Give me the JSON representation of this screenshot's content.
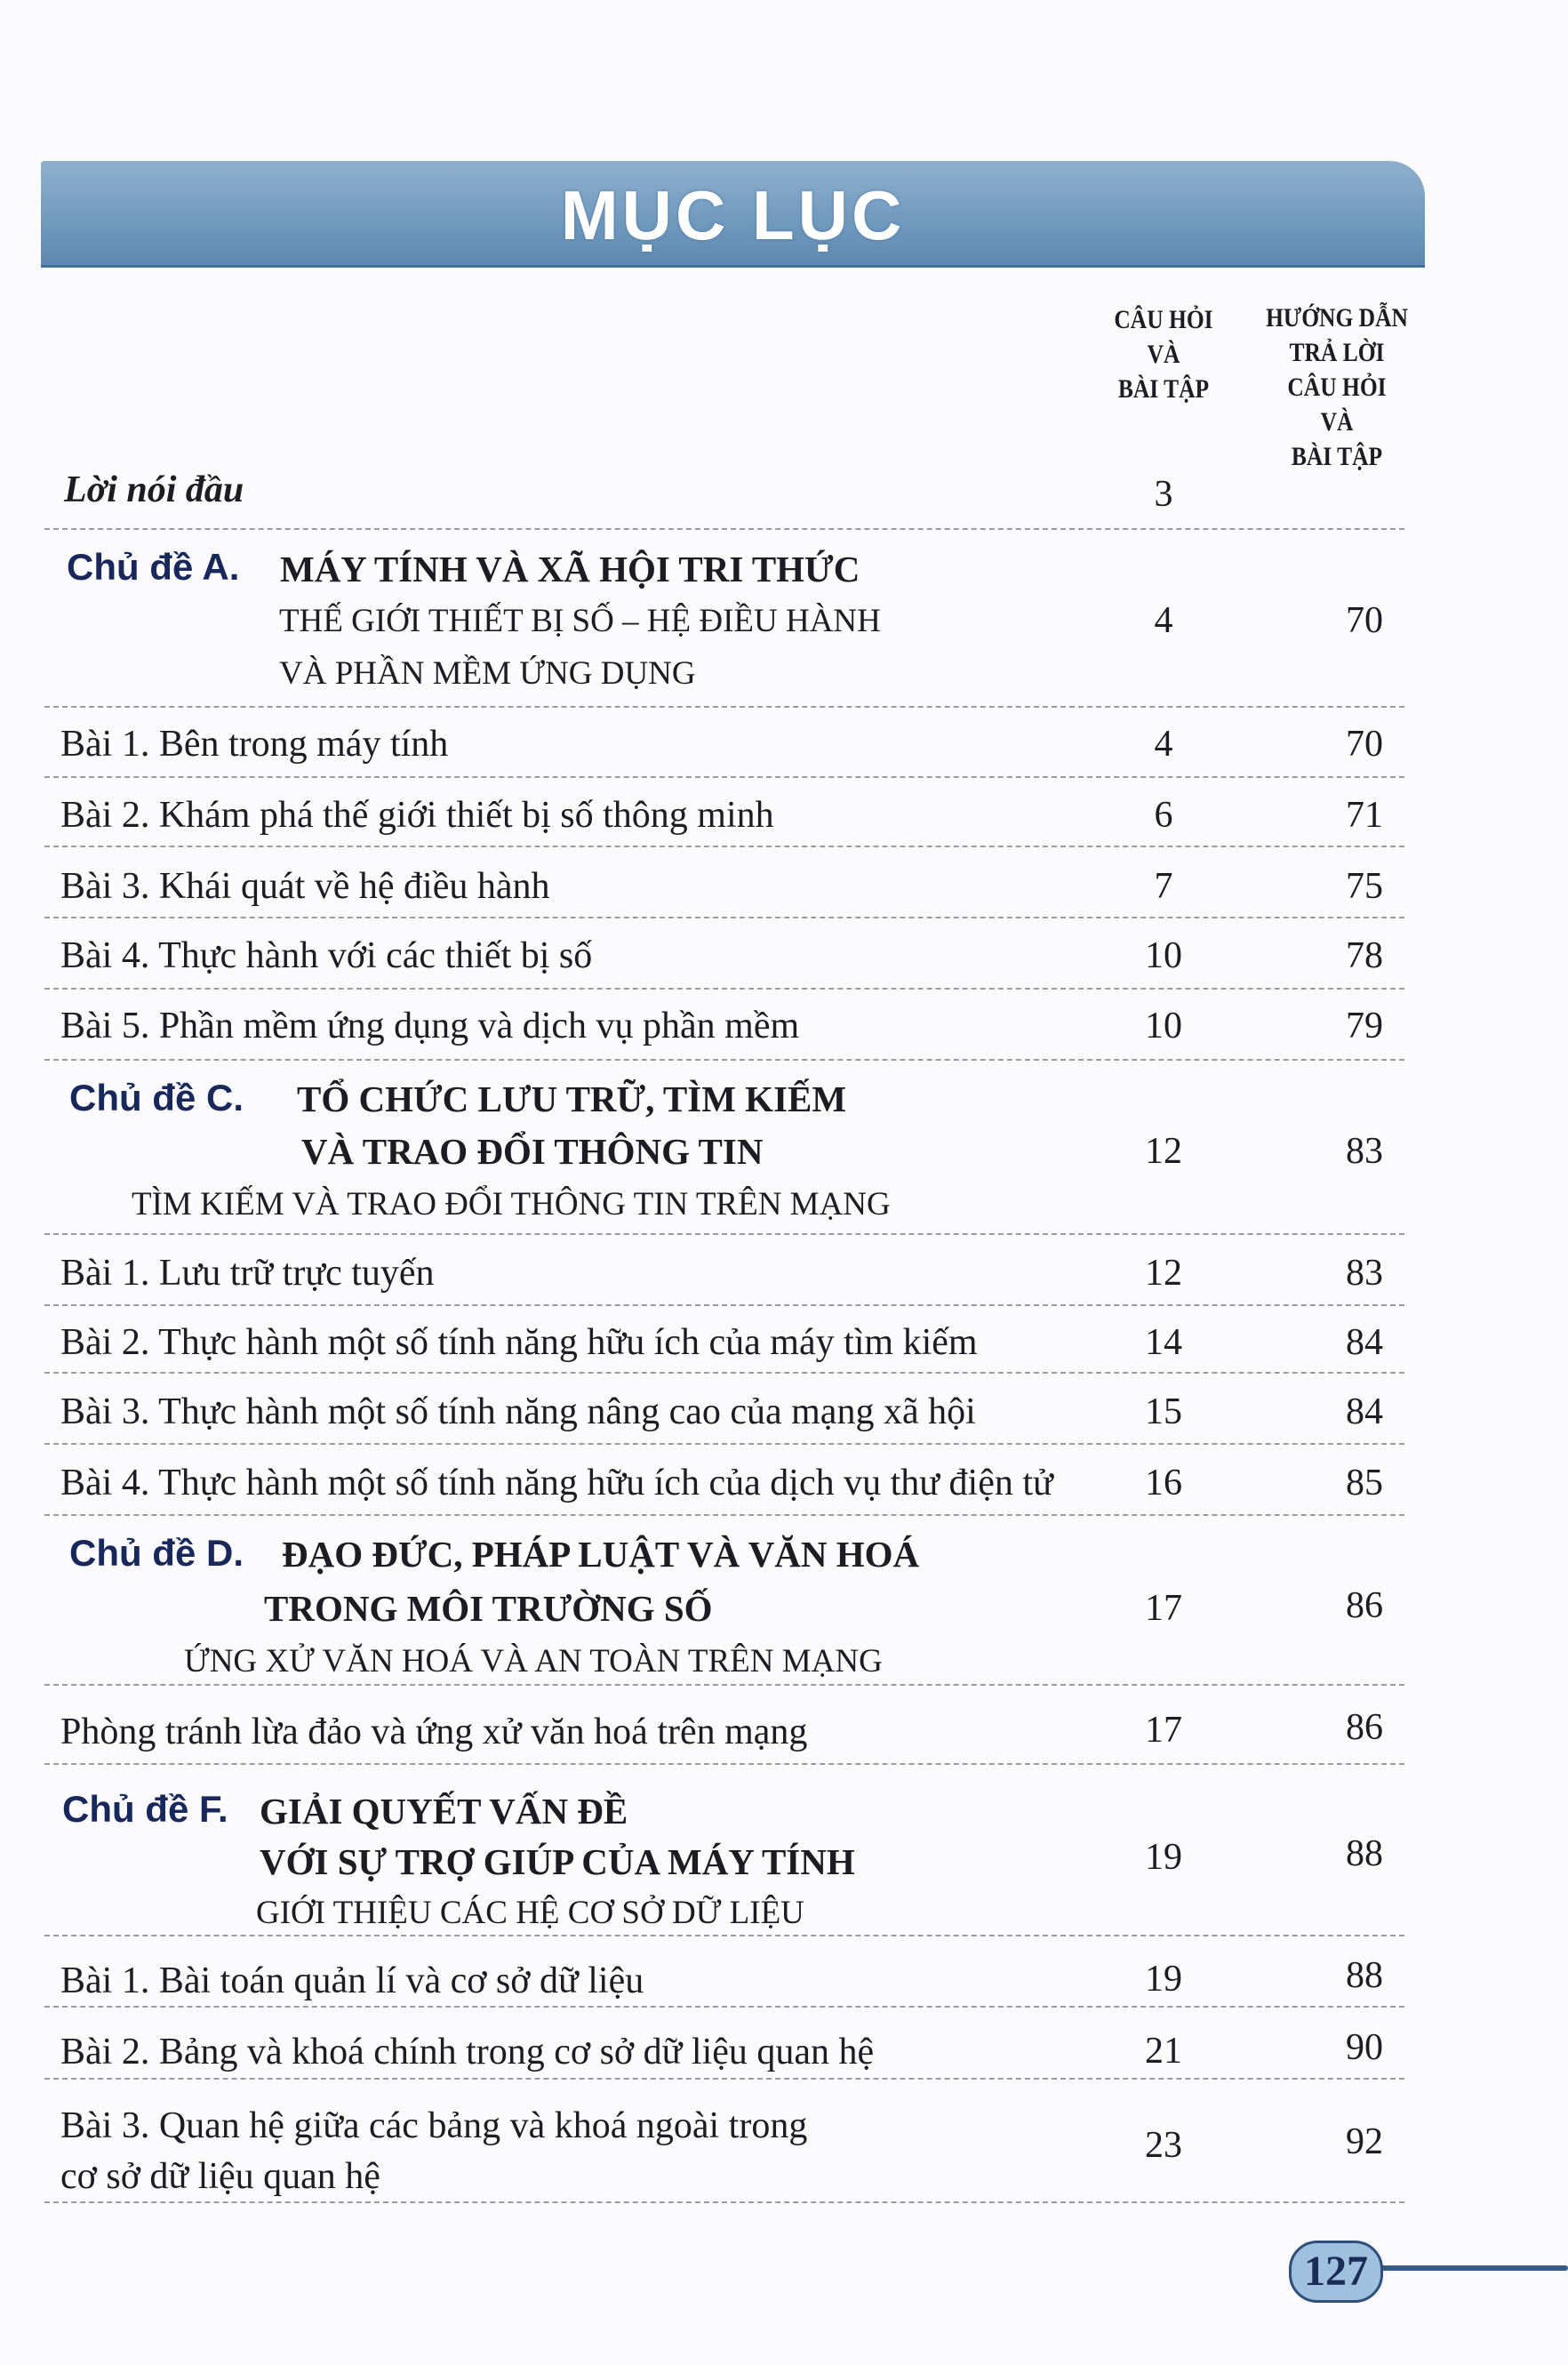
{
  "title": "MỤC LỤC",
  "columns": {
    "questions": "CÂU HỎI\nVÀ\nBÀI TẬP",
    "answers": "HƯỚNG DẪN\nTRẢ LỜI\nCÂU HỎI\nVÀ\nBÀI TẬP"
  },
  "preface": {
    "label": "Lời nói đầu",
    "q": "3"
  },
  "topicA": {
    "label": "Chủ đề A.",
    "line1": "MÁY TÍNH VÀ XÃ HỘI TRI THỨC",
    "line2": "THẾ GIỚI THIẾT BỊ SỐ – HỆ ĐIỀU HÀNH",
    "line3": "VÀ PHẦN MỀM ỨNG DỤNG",
    "q": "4",
    "a": "70",
    "lessons": [
      {
        "label": "Bài 1. Bên trong máy tính",
        "q": "4",
        "a": "70"
      },
      {
        "label": "Bài 2. Khám phá thế giới thiết bị số thông minh",
        "q": "6",
        "a": "71"
      },
      {
        "label": "Bài 3.  Khái quát về hệ điều hành",
        "q": "7",
        "a": "75"
      },
      {
        "label": "Bài 4. Thực hành với các thiết bị số",
        "q": "10",
        "a": "78"
      },
      {
        "label": "Bài 5. Phần mềm ứng dụng và dịch vụ phần mềm",
        "q": "10",
        "a": "79"
      }
    ]
  },
  "topicC": {
    "label": "Chủ đề C.",
    "line1": "TỔ CHỨC LƯU TRỮ, TÌM KIẾM",
    "line2": "VÀ TRAO ĐỔI THÔNG TIN",
    "line3": "TÌM KIẾM VÀ TRAO ĐỔI THÔNG TIN TRÊN MẠNG",
    "q": "12",
    "a": "83",
    "lessons": [
      {
        "label": "Bài 1. Lưu trữ trực tuyến",
        "q": "12",
        "a": "83"
      },
      {
        "label": "Bài 2. Thực hành một số tính năng hữu ích của máy tìm kiếm",
        "q": "14",
        "a": "84"
      },
      {
        "label": "Bài 3. Thực hành một số tính năng nâng cao của mạng xã hội",
        "q": "15",
        "a": "84"
      },
      {
        "label": "Bài 4. Thực hành một số tính năng hữu ích của dịch vụ thư điện tử",
        "q": "16",
        "a": "85"
      }
    ]
  },
  "topicD": {
    "label": "Chủ đề D.",
    "line1": "ĐẠO ĐỨC, PHÁP LUẬT VÀ VĂN HOÁ",
    "line2": "TRONG MÔI TRƯỜNG SỐ",
    "line3": "ỨNG XỬ VĂN HOÁ VÀ AN TOÀN TRÊN MẠNG",
    "q": "17",
    "a": "86",
    "lessons": [
      {
        "label": "Phòng tránh lừa đảo và ứng xử văn hoá trên mạng",
        "q": "17",
        "a": "86"
      }
    ]
  },
  "topicF": {
    "label": "Chủ đề F.",
    "line1": "GIẢI QUYẾT VẤN ĐỀ",
    "line2": "VỚI SỰ TRỢ GIÚP CỦA MÁY TÍNH",
    "line3": "GIỚI THIỆU CÁC HỆ CƠ SỞ DỮ LIỆU",
    "q": "19",
    "a": "88",
    "lessons": [
      {
        "label": "Bài 1. Bài toán quản lí và cơ sở dữ liệu",
        "q": "19",
        "a": "88"
      },
      {
        "label": "Bài 2. Bảng và khoá chính trong cơ sở dữ liệu quan hệ",
        "q": "21",
        "a": "90"
      },
      {
        "label": "Bài 3. Quan hệ giữa các bảng và khoá ngoài trong",
        "label2": "cơ sở dữ liệu quan hệ",
        "q": "23",
        "a": "92"
      }
    ]
  },
  "page_number": "127"
}
